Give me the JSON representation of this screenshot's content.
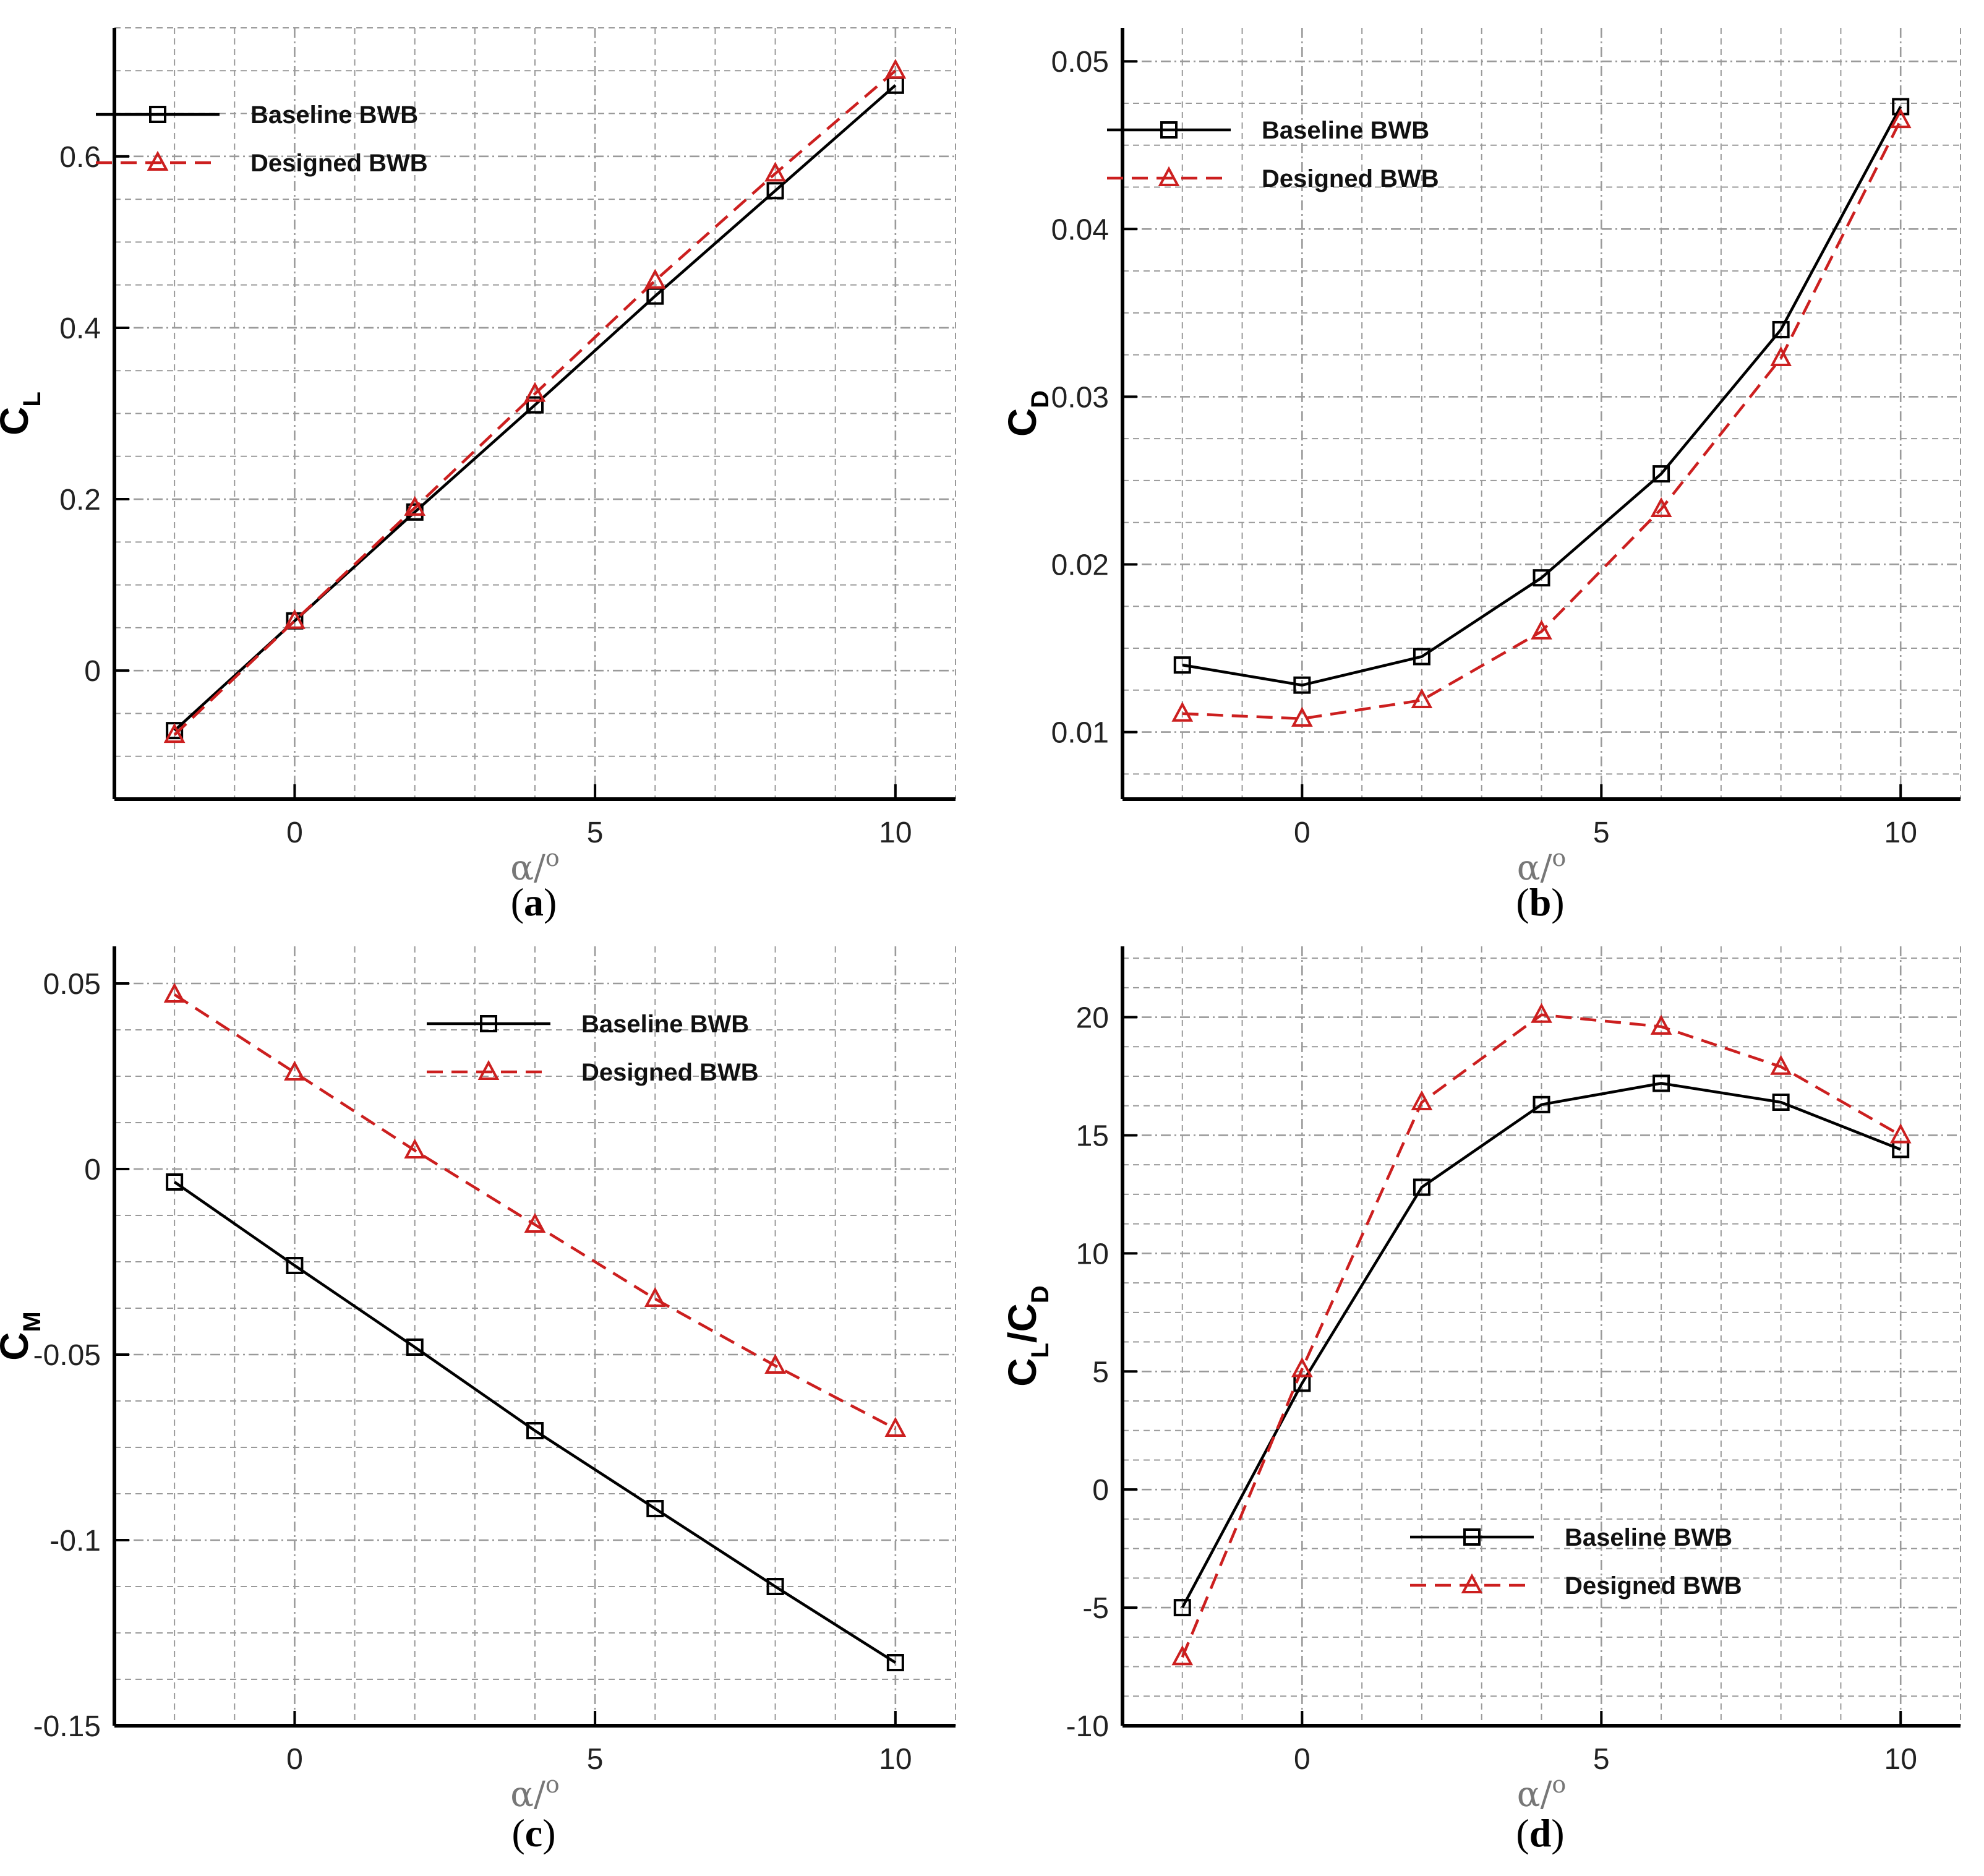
{
  "figure": {
    "x_axis_title_main": "α/",
    "x_axis_title_sup": "o",
    "colors": {
      "baseline": "#000000",
      "designed": "#cc1f1f",
      "grid": "#9a9a9a"
    }
  },
  "chart_data": [
    {
      "type": "line",
      "panel_open": "(",
      "panel_letter": "a",
      "panel_close": ")",
      "ylabel_main": "C",
      "ylabel_sub": "L",
      "ylabel_tail_main": "",
      "ylabel_tail_sub": "",
      "x_tick_labels": [
        "0",
        "5",
        "10"
      ],
      "y_tick_labels": [
        "0",
        "0.2",
        "0.4",
        "0.6"
      ],
      "x_ticks": [
        0,
        5,
        10
      ],
      "y_ticks": [
        0,
        0.2,
        0.4,
        0.6
      ],
      "xlim": [
        -3,
        11
      ],
      "ylim": [
        -0.15,
        0.75
      ],
      "x": [
        -2,
        0,
        2,
        4,
        6,
        8,
        10
      ],
      "legend_position": "top-left",
      "series": [
        {
          "name": "Baseline BWB",
          "values": [
            -0.07,
            0.058,
            0.185,
            0.31,
            0.437,
            0.56,
            0.683
          ]
        },
        {
          "name": "Designed BWB",
          "values": [
            -0.075,
            0.058,
            0.19,
            0.323,
            0.455,
            0.58,
            0.7
          ]
        }
      ]
    },
    {
      "type": "line",
      "panel_open": "(",
      "panel_letter": "b",
      "panel_close": ")",
      "ylabel_main": "C",
      "ylabel_sub": "D",
      "ylabel_tail_main": "",
      "ylabel_tail_sub": "",
      "x_tick_labels": [
        "0",
        "5",
        "10"
      ],
      "y_tick_labels": [
        "0.01",
        "0.02",
        "0.03",
        "0.04",
        "0.05"
      ],
      "x_ticks": [
        0,
        5,
        10
      ],
      "y_ticks": [
        0.01,
        0.02,
        0.03,
        0.04,
        0.05
      ],
      "xlim": [
        -3,
        11
      ],
      "ylim": [
        0.006,
        0.052
      ],
      "x": [
        -2,
        0,
        2,
        4,
        6,
        8,
        10
      ],
      "legend_position": "top-left",
      "series": [
        {
          "name": "Baseline BWB",
          "values": [
            0.014,
            0.0128,
            0.0145,
            0.0192,
            0.0254,
            0.034,
            0.0473
          ]
        },
        {
          "name": "Designed BWB",
          "values": [
            0.0111,
            0.0108,
            0.0119,
            0.016,
            0.0233,
            0.0323,
            0.0465
          ]
        }
      ]
    },
    {
      "type": "line",
      "panel_open": "(",
      "panel_letter": "c",
      "panel_close": ")",
      "ylabel_main": "C",
      "ylabel_sub": "M",
      "ylabel_tail_main": "",
      "ylabel_tail_sub": "",
      "x_tick_labels": [
        "0",
        "5",
        "10"
      ],
      "y_tick_labels": [
        "0.05",
        "0",
        "-0.05",
        "-0.1",
        "-0.15"
      ],
      "x_ticks": [
        0,
        5,
        10
      ],
      "y_ticks": [
        0.05,
        0,
        -0.05,
        -0.1,
        -0.15
      ],
      "xlim": [
        -3,
        11
      ],
      "ylim": [
        -0.15,
        0.06
      ],
      "x": [
        -2,
        0,
        2,
        4,
        6,
        8,
        10
      ],
      "legend_position": "top-right",
      "series": [
        {
          "name": "Baseline BWB",
          "values": [
            -0.0035,
            -0.026,
            -0.048,
            -0.0705,
            -0.0915,
            -0.1125,
            -0.133
          ]
        },
        {
          "name": "Designed BWB",
          "values": [
            0.047,
            0.026,
            0.005,
            -0.015,
            -0.035,
            -0.053,
            -0.07
          ]
        }
      ]
    },
    {
      "type": "line",
      "panel_open": "(",
      "panel_letter": "d",
      "panel_close": ")",
      "ylabel_main": "C",
      "ylabel_sub": "L",
      "ylabel_tail_main": "/C",
      "ylabel_tail_sub": "D",
      "x_tick_labels": [
        "0",
        "5",
        "10"
      ],
      "y_tick_labels": [
        "-10",
        "-5",
        "0",
        "5",
        "10",
        "15",
        "20"
      ],
      "x_ticks": [
        0,
        5,
        10
      ],
      "y_ticks": [
        -10,
        -5,
        0,
        5,
        10,
        15,
        20
      ],
      "xlim": [
        -3,
        11
      ],
      "ylim": [
        -10,
        23
      ],
      "x": [
        -2,
        0,
        2,
        4,
        6,
        8,
        10
      ],
      "legend_position": "bottom-right",
      "series": [
        {
          "name": "Baseline BWB",
          "values": [
            -5.0,
            4.5,
            12.8,
            16.3,
            17.2,
            16.4,
            14.4
          ]
        },
        {
          "name": "Designed BWB",
          "values": [
            -7.1,
            5.1,
            16.4,
            20.1,
            19.6,
            17.9,
            15.0
          ]
        }
      ]
    }
  ]
}
